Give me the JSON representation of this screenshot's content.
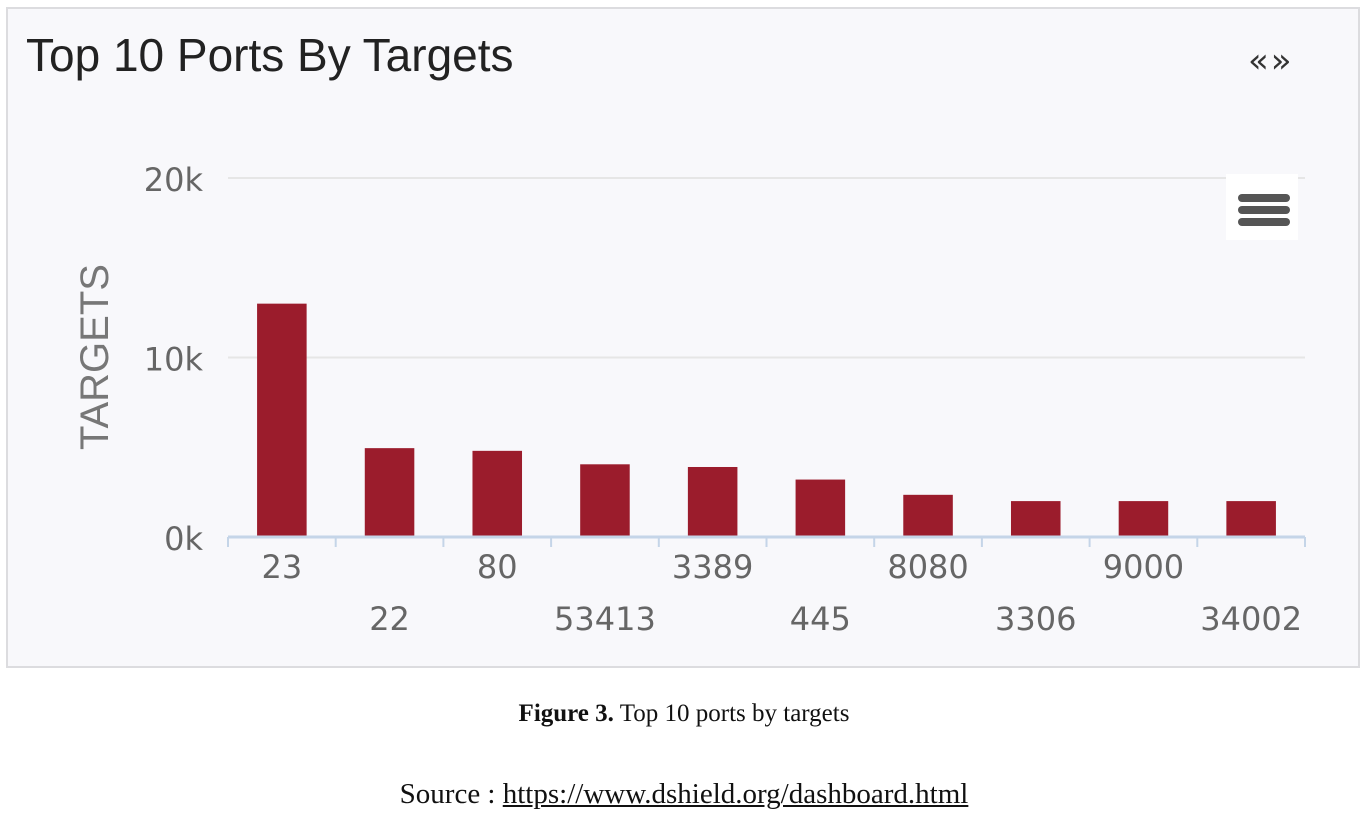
{
  "panel": {
    "title": "Top 10 Ports By Targets",
    "nav_label": "«»"
  },
  "chart_data": {
    "type": "bar",
    "title": "Top 10 Ports By Targets",
    "xlabel": "",
    "ylabel": "TARGETS",
    "categories": [
      "23",
      "22",
      "80",
      "53413",
      "3389",
      "445",
      "8080",
      "3306",
      "9000",
      "34002"
    ],
    "values": [
      13000,
      4950,
      4800,
      4050,
      3900,
      3200,
      2350,
      2000,
      2000,
      2000
    ],
    "ylim": [
      0,
      20000
    ],
    "yticks": [
      0,
      10000,
      20000
    ],
    "ytick_labels": [
      "0k",
      "10k",
      "20k"
    ],
    "grid": true,
    "bar_color": "#9b1c2c",
    "grid_color": "#e6e6e6",
    "axis_color": "#c5d5e8"
  },
  "caption": {
    "label": "Figure 3.",
    "text": " Top 10 ports by targets"
  },
  "source": {
    "prefix": "Source : ",
    "url_text": "https://www.dshield.org/dashboard.html"
  }
}
